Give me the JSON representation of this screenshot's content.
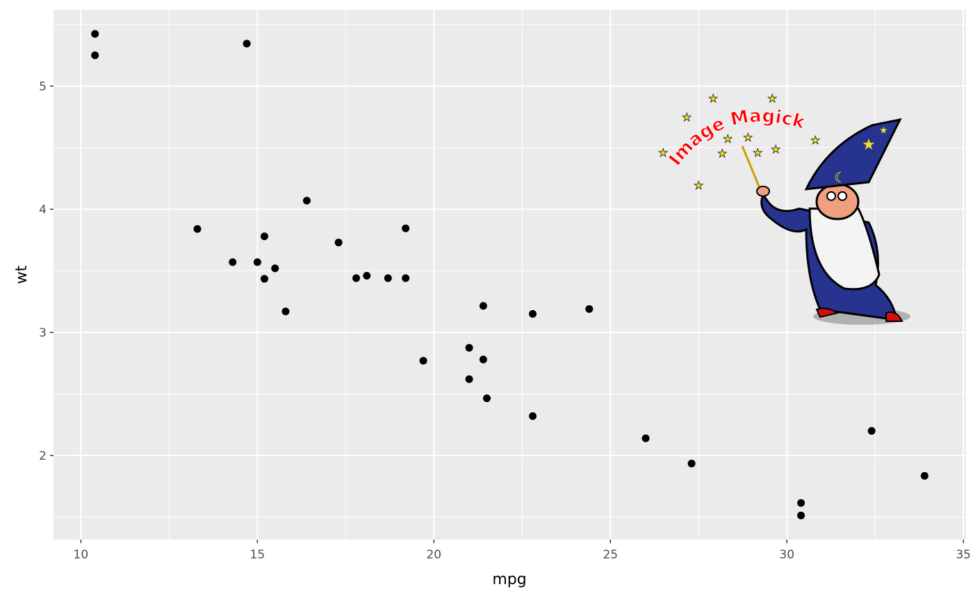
{
  "chart_data": {
    "type": "scatter",
    "title": "",
    "xlabel": "mpg",
    "ylabel": "wt",
    "xlim": [
      9.225,
      35.075
    ],
    "ylim": [
      1.317,
      5.62
    ],
    "xticks": [
      10,
      15,
      20,
      25,
      30,
      35
    ],
    "yticks": [
      2,
      3,
      4,
      5
    ],
    "grid": true,
    "panel_background": "#EBEBEB",
    "point_color": "#000000",
    "x": [
      21.0,
      21.0,
      22.8,
      21.4,
      18.7,
      18.1,
      14.3,
      24.4,
      22.8,
      19.2,
      17.8,
      16.4,
      17.3,
      15.2,
      10.4,
      10.4,
      14.7,
      32.4,
      30.4,
      33.9,
      21.5,
      15.5,
      15.2,
      13.3,
      19.2,
      27.3,
      26.0,
      30.4,
      15.8,
      19.7,
      15.0,
      21.4
    ],
    "y": [
      2.62,
      2.875,
      2.32,
      3.215,
      3.44,
      3.46,
      3.57,
      3.19,
      3.15,
      3.44,
      3.44,
      4.07,
      3.73,
      3.78,
      5.25,
      5.424,
      5.345,
      2.2,
      1.615,
      1.835,
      2.465,
      3.52,
      3.435,
      3.84,
      3.845,
      1.935,
      2.14,
      1.513,
      3.17,
      2.77,
      3.57,
      2.78
    ]
  },
  "logo": {
    "text": "Image Magick",
    "text_color": "#FF0000"
  }
}
